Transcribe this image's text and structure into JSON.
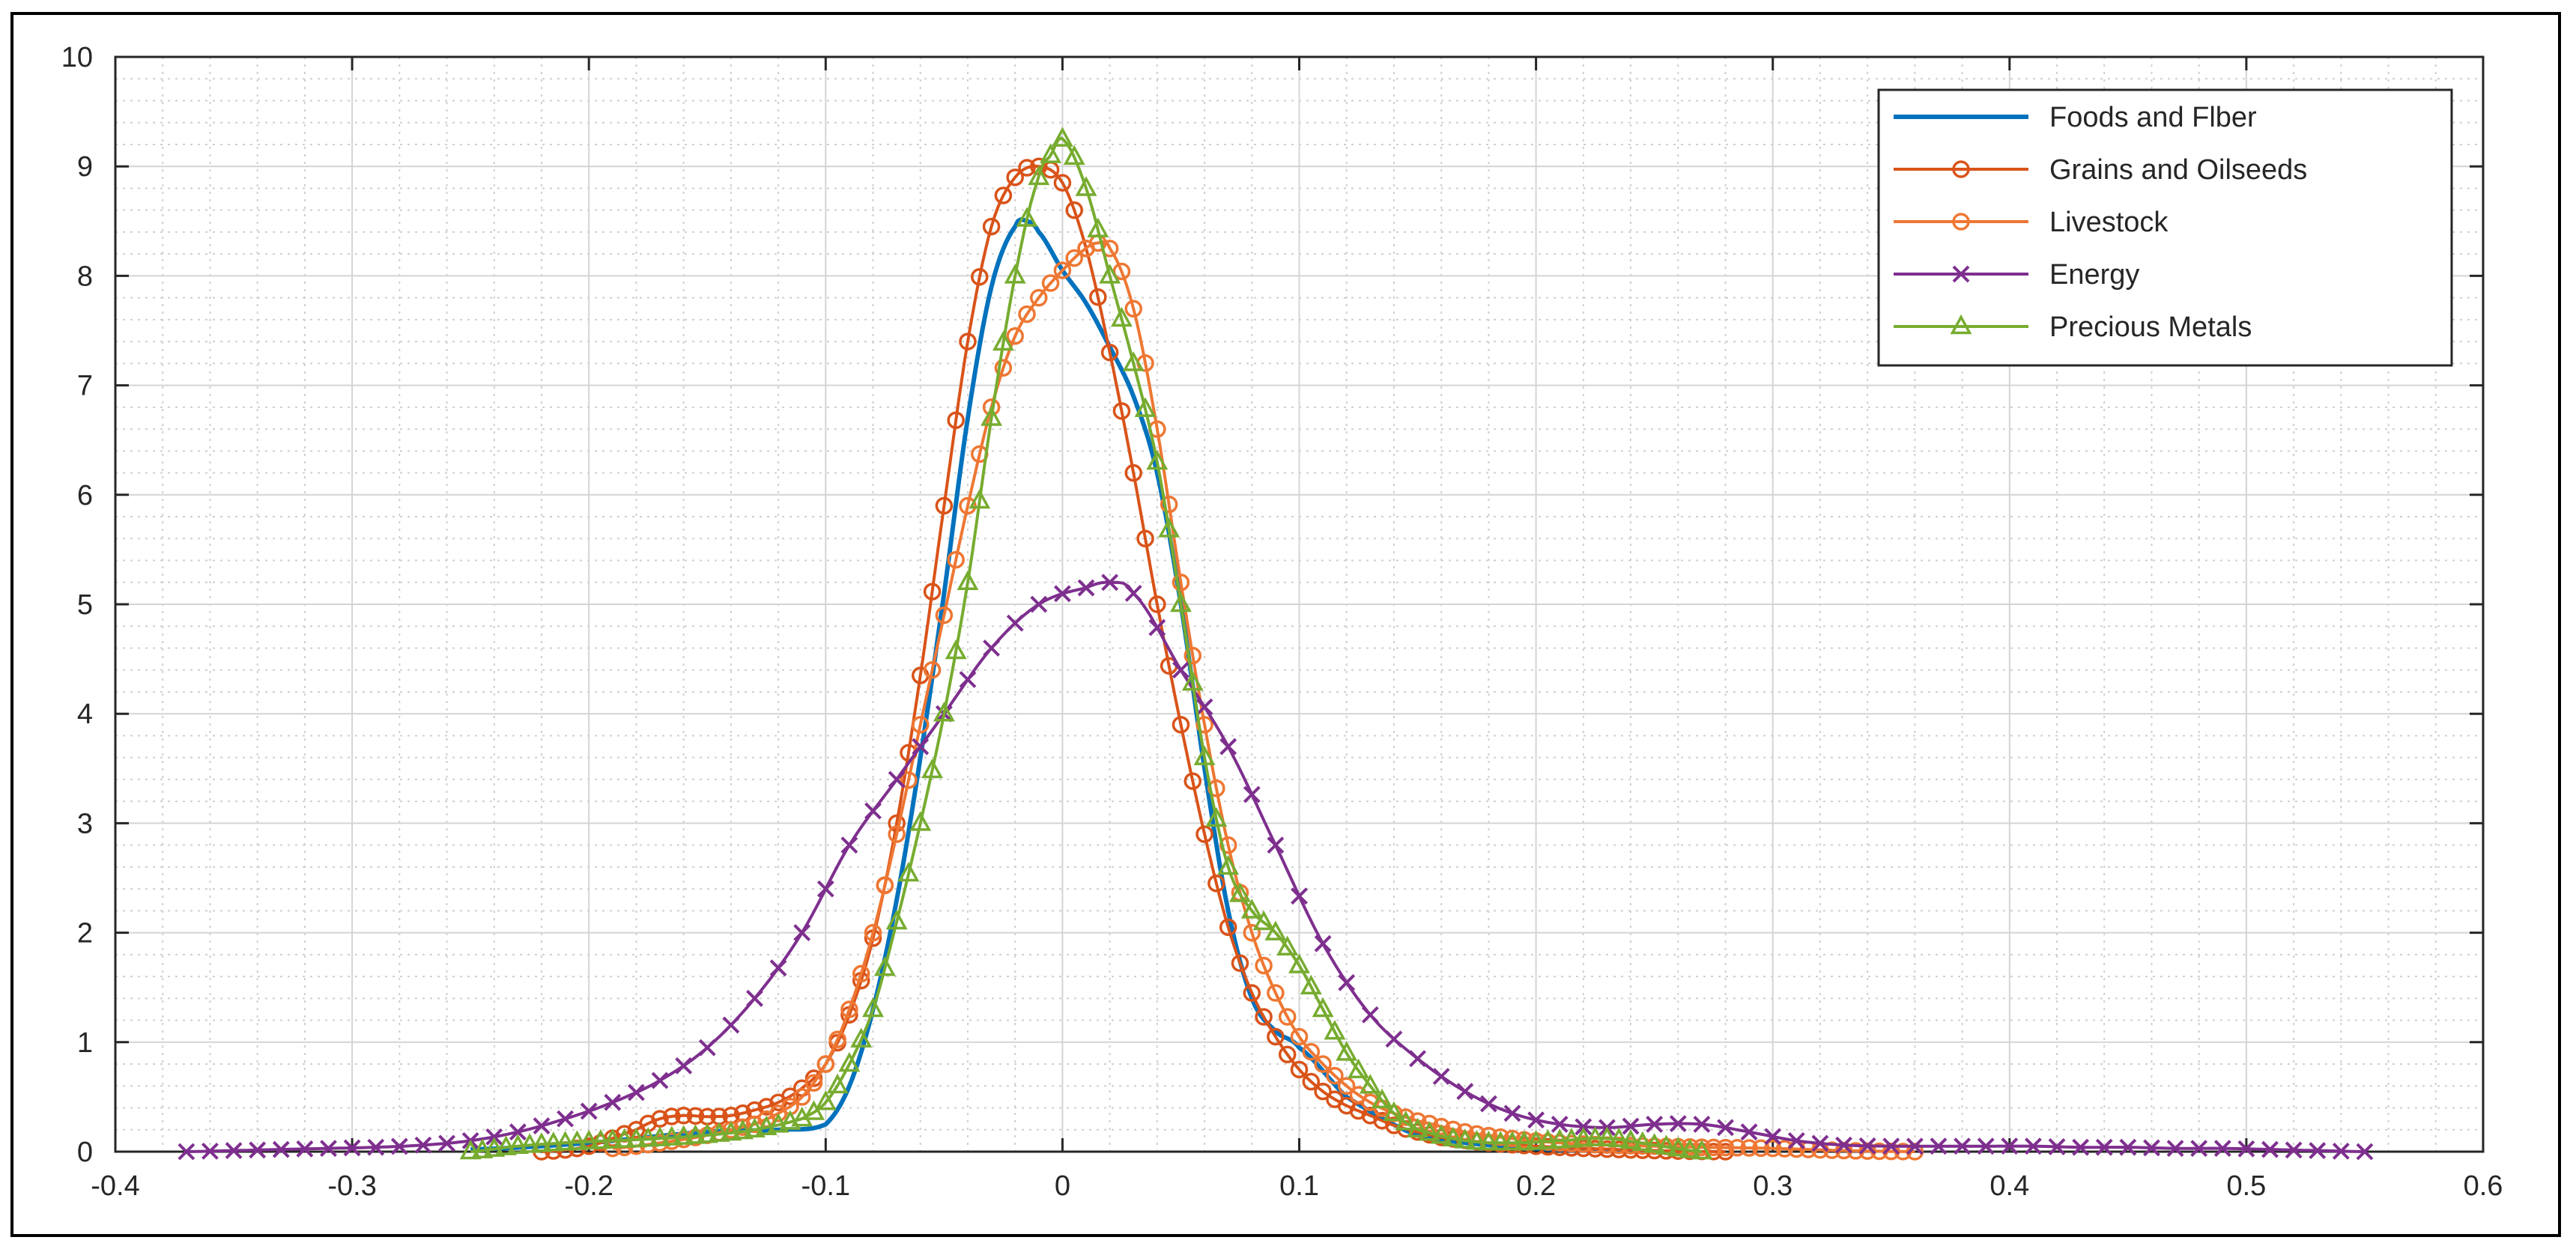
{
  "chart_data": {
    "type": "line",
    "title": "",
    "xlabel": "",
    "ylabel": "",
    "xlim": [
      -0.4,
      0.6
    ],
    "ylim": [
      0,
      10
    ],
    "xticks": [
      -0.4,
      -0.3,
      -0.2,
      -0.1,
      0,
      0.1,
      0.2,
      0.3,
      0.4,
      0.5,
      0.6
    ],
    "xtick_labels": [
      "-0.4",
      "-0.3",
      "-0.2",
      "-0.1",
      "0",
      "0.1",
      "0.2",
      "0.3",
      "0.4",
      "0.5",
      "0.6"
    ],
    "yticks": [
      0,
      1,
      2,
      3,
      4,
      5,
      6,
      7,
      8,
      9,
      10
    ],
    "ytick_labels": [
      "0",
      "1",
      "2",
      "3",
      "4",
      "5",
      "6",
      "7",
      "8",
      "9",
      "10"
    ],
    "grid": true,
    "minor_grid": true,
    "legend_position": "top-right",
    "series": [
      {
        "name": "Foods and Flber",
        "color": "#0072BD",
        "marker": "none",
        "x": [
          -0.25,
          -0.2,
          -0.15,
          -0.12,
          -0.1,
          -0.09,
          -0.08,
          -0.07,
          -0.06,
          -0.05,
          -0.04,
          -0.03,
          -0.02,
          -0.015,
          -0.01,
          0,
          0.01,
          0.02,
          0.03,
          0.04,
          0.05,
          0.06,
          0.07,
          0.08,
          0.09,
          0.1,
          0.12,
          0.15,
          0.2,
          0.25
        ],
        "y": [
          0.02,
          0.08,
          0.18,
          0.2,
          0.25,
          0.6,
          1.3,
          2.3,
          3.6,
          5.1,
          6.7,
          7.9,
          8.45,
          8.5,
          8.4,
          8.05,
          7.75,
          7.35,
          6.9,
          6.2,
          5.0,
          3.5,
          2.2,
          1.4,
          1.1,
          0.95,
          0.5,
          0.15,
          0.03,
          0.0
        ]
      },
      {
        "name": "Grains and Oilseeds",
        "color": "#D95319",
        "marker": "circle",
        "x": [
          -0.22,
          -0.2,
          -0.18,
          -0.17,
          -0.16,
          -0.15,
          -0.14,
          -0.13,
          -0.12,
          -0.11,
          -0.1,
          -0.09,
          -0.08,
          -0.07,
          -0.06,
          -0.05,
          -0.04,
          -0.03,
          -0.02,
          -0.01,
          0,
          0.01,
          0.02,
          0.03,
          0.04,
          0.05,
          0.06,
          0.07,
          0.08,
          0.09,
          0.1,
          0.11,
          0.12,
          0.13,
          0.14,
          0.15,
          0.16,
          0.18,
          0.2,
          0.22,
          0.25,
          0.28
        ],
        "y": [
          0.0,
          0.05,
          0.2,
          0.3,
          0.33,
          0.32,
          0.33,
          0.38,
          0.45,
          0.58,
          0.8,
          1.25,
          1.95,
          3.0,
          4.35,
          5.9,
          7.4,
          8.45,
          8.9,
          9.0,
          8.85,
          8.25,
          7.3,
          6.2,
          5.0,
          3.9,
          2.9,
          2.05,
          1.45,
          1.05,
          0.75,
          0.55,
          0.42,
          0.33,
          0.24,
          0.18,
          0.13,
          0.08,
          0.05,
          0.03,
          0.01,
          0.0
        ]
      },
      {
        "name": "Livestock",
        "color": "#EE7733",
        "marker": "circle",
        "x": [
          -0.19,
          -0.17,
          -0.15,
          -0.13,
          -0.12,
          -0.11,
          -0.1,
          -0.09,
          -0.08,
          -0.07,
          -0.06,
          -0.05,
          -0.04,
          -0.03,
          -0.02,
          -0.01,
          0,
          0.01,
          0.015,
          0.02,
          0.03,
          0.04,
          0.05,
          0.06,
          0.07,
          0.08,
          0.09,
          0.1,
          0.11,
          0.12,
          0.13,
          0.14,
          0.15,
          0.17,
          0.19,
          0.21,
          0.23,
          0.25,
          0.27,
          0.3,
          0.33,
          0.36
        ],
        "y": [
          0.03,
          0.08,
          0.15,
          0.25,
          0.35,
          0.5,
          0.8,
          1.3,
          2.0,
          2.9,
          3.9,
          4.9,
          5.9,
          6.8,
          7.45,
          7.8,
          8.05,
          8.25,
          8.3,
          8.25,
          7.7,
          6.6,
          5.2,
          3.9,
          2.8,
          2.0,
          1.45,
          1.05,
          0.8,
          0.6,
          0.45,
          0.35,
          0.28,
          0.18,
          0.12,
          0.08,
          0.06,
          0.05,
          0.04,
          0.03,
          0.01,
          0.0
        ]
      },
      {
        "name": "Energy",
        "color": "#7E2F8E",
        "marker": "x",
        "x": [
          -0.37,
          -0.35,
          -0.33,
          -0.31,
          -0.29,
          -0.27,
          -0.25,
          -0.23,
          -0.21,
          -0.19,
          -0.17,
          -0.15,
          -0.13,
          -0.11,
          -0.09,
          -0.07,
          -0.05,
          -0.03,
          -0.01,
          0.01,
          0.02,
          0.03,
          0.05,
          0.07,
          0.09,
          0.11,
          0.13,
          0.15,
          0.17,
          0.19,
          0.21,
          0.23,
          0.25,
          0.27,
          0.29,
          0.31,
          0.33,
          0.35,
          0.37,
          0.39,
          0.41,
          0.43,
          0.45,
          0.47,
          0.49,
          0.51,
          0.53,
          0.55
        ],
        "y": [
          0.0,
          0.01,
          0.02,
          0.03,
          0.04,
          0.06,
          0.1,
          0.18,
          0.3,
          0.45,
          0.65,
          0.95,
          1.4,
          2.0,
          2.8,
          3.4,
          4.0,
          4.6,
          5.0,
          5.15,
          5.2,
          5.1,
          4.4,
          3.7,
          2.8,
          1.9,
          1.25,
          0.85,
          0.55,
          0.35,
          0.25,
          0.22,
          0.25,
          0.25,
          0.18,
          0.1,
          0.06,
          0.05,
          0.05,
          0.05,
          0.05,
          0.04,
          0.04,
          0.03,
          0.03,
          0.02,
          0.01,
          0.0
        ]
      },
      {
        "name": "Precious Metals",
        "color": "#77AC30",
        "marker": "triangle",
        "x": [
          -0.25,
          -0.23,
          -0.21,
          -0.19,
          -0.17,
          -0.15,
          -0.13,
          -0.11,
          -0.1,
          -0.09,
          -0.08,
          -0.07,
          -0.06,
          -0.05,
          -0.04,
          -0.03,
          -0.02,
          -0.01,
          -0.005,
          0,
          0.01,
          0.02,
          0.03,
          0.04,
          0.05,
          0.06,
          0.07,
          0.08,
          0.09,
          0.1,
          0.11,
          0.12,
          0.13,
          0.14,
          0.15,
          0.17,
          0.19,
          0.21,
          0.23,
          0.25,
          0.27
        ],
        "y": [
          0.0,
          0.05,
          0.08,
          0.1,
          0.12,
          0.15,
          0.2,
          0.3,
          0.45,
          0.8,
          1.3,
          2.1,
          3.0,
          4.0,
          5.2,
          6.7,
          8.0,
          8.9,
          9.1,
          9.25,
          8.8,
          8.0,
          7.2,
          6.3,
          5.0,
          3.6,
          2.6,
          2.2,
          2.0,
          1.7,
          1.3,
          0.9,
          0.6,
          0.35,
          0.2,
          0.1,
          0.08,
          0.1,
          0.12,
          0.06,
          0.0
        ]
      }
    ]
  }
}
